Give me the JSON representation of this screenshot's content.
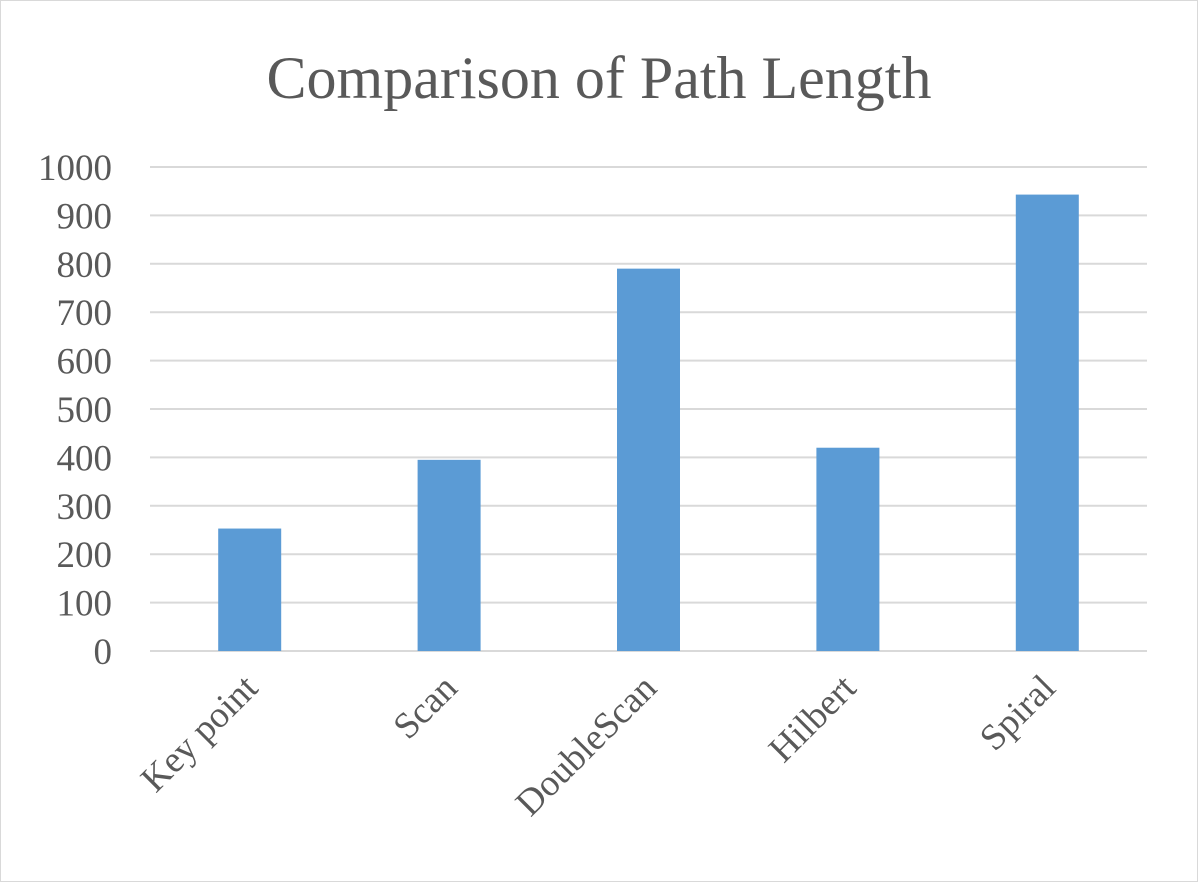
{
  "chart_data": {
    "type": "bar",
    "title": "Comparison of Path Length",
    "xlabel": "",
    "ylabel": "",
    "categories": [
      "Key point",
      "Scan",
      "DoubleScan",
      "Hilbert",
      "Spiral"
    ],
    "values": [
      253,
      395,
      790,
      420,
      943
    ],
    "ylim": [
      0,
      1000
    ],
    "yticks": [
      "0",
      "100",
      "200",
      "300",
      "400",
      "500",
      "600",
      "700",
      "800",
      "900",
      "1000"
    ],
    "grid": true,
    "legend": "none",
    "colors": {
      "bar": "#5b9bd5",
      "grid": "#d9d9d9",
      "text": "#595959"
    }
  }
}
